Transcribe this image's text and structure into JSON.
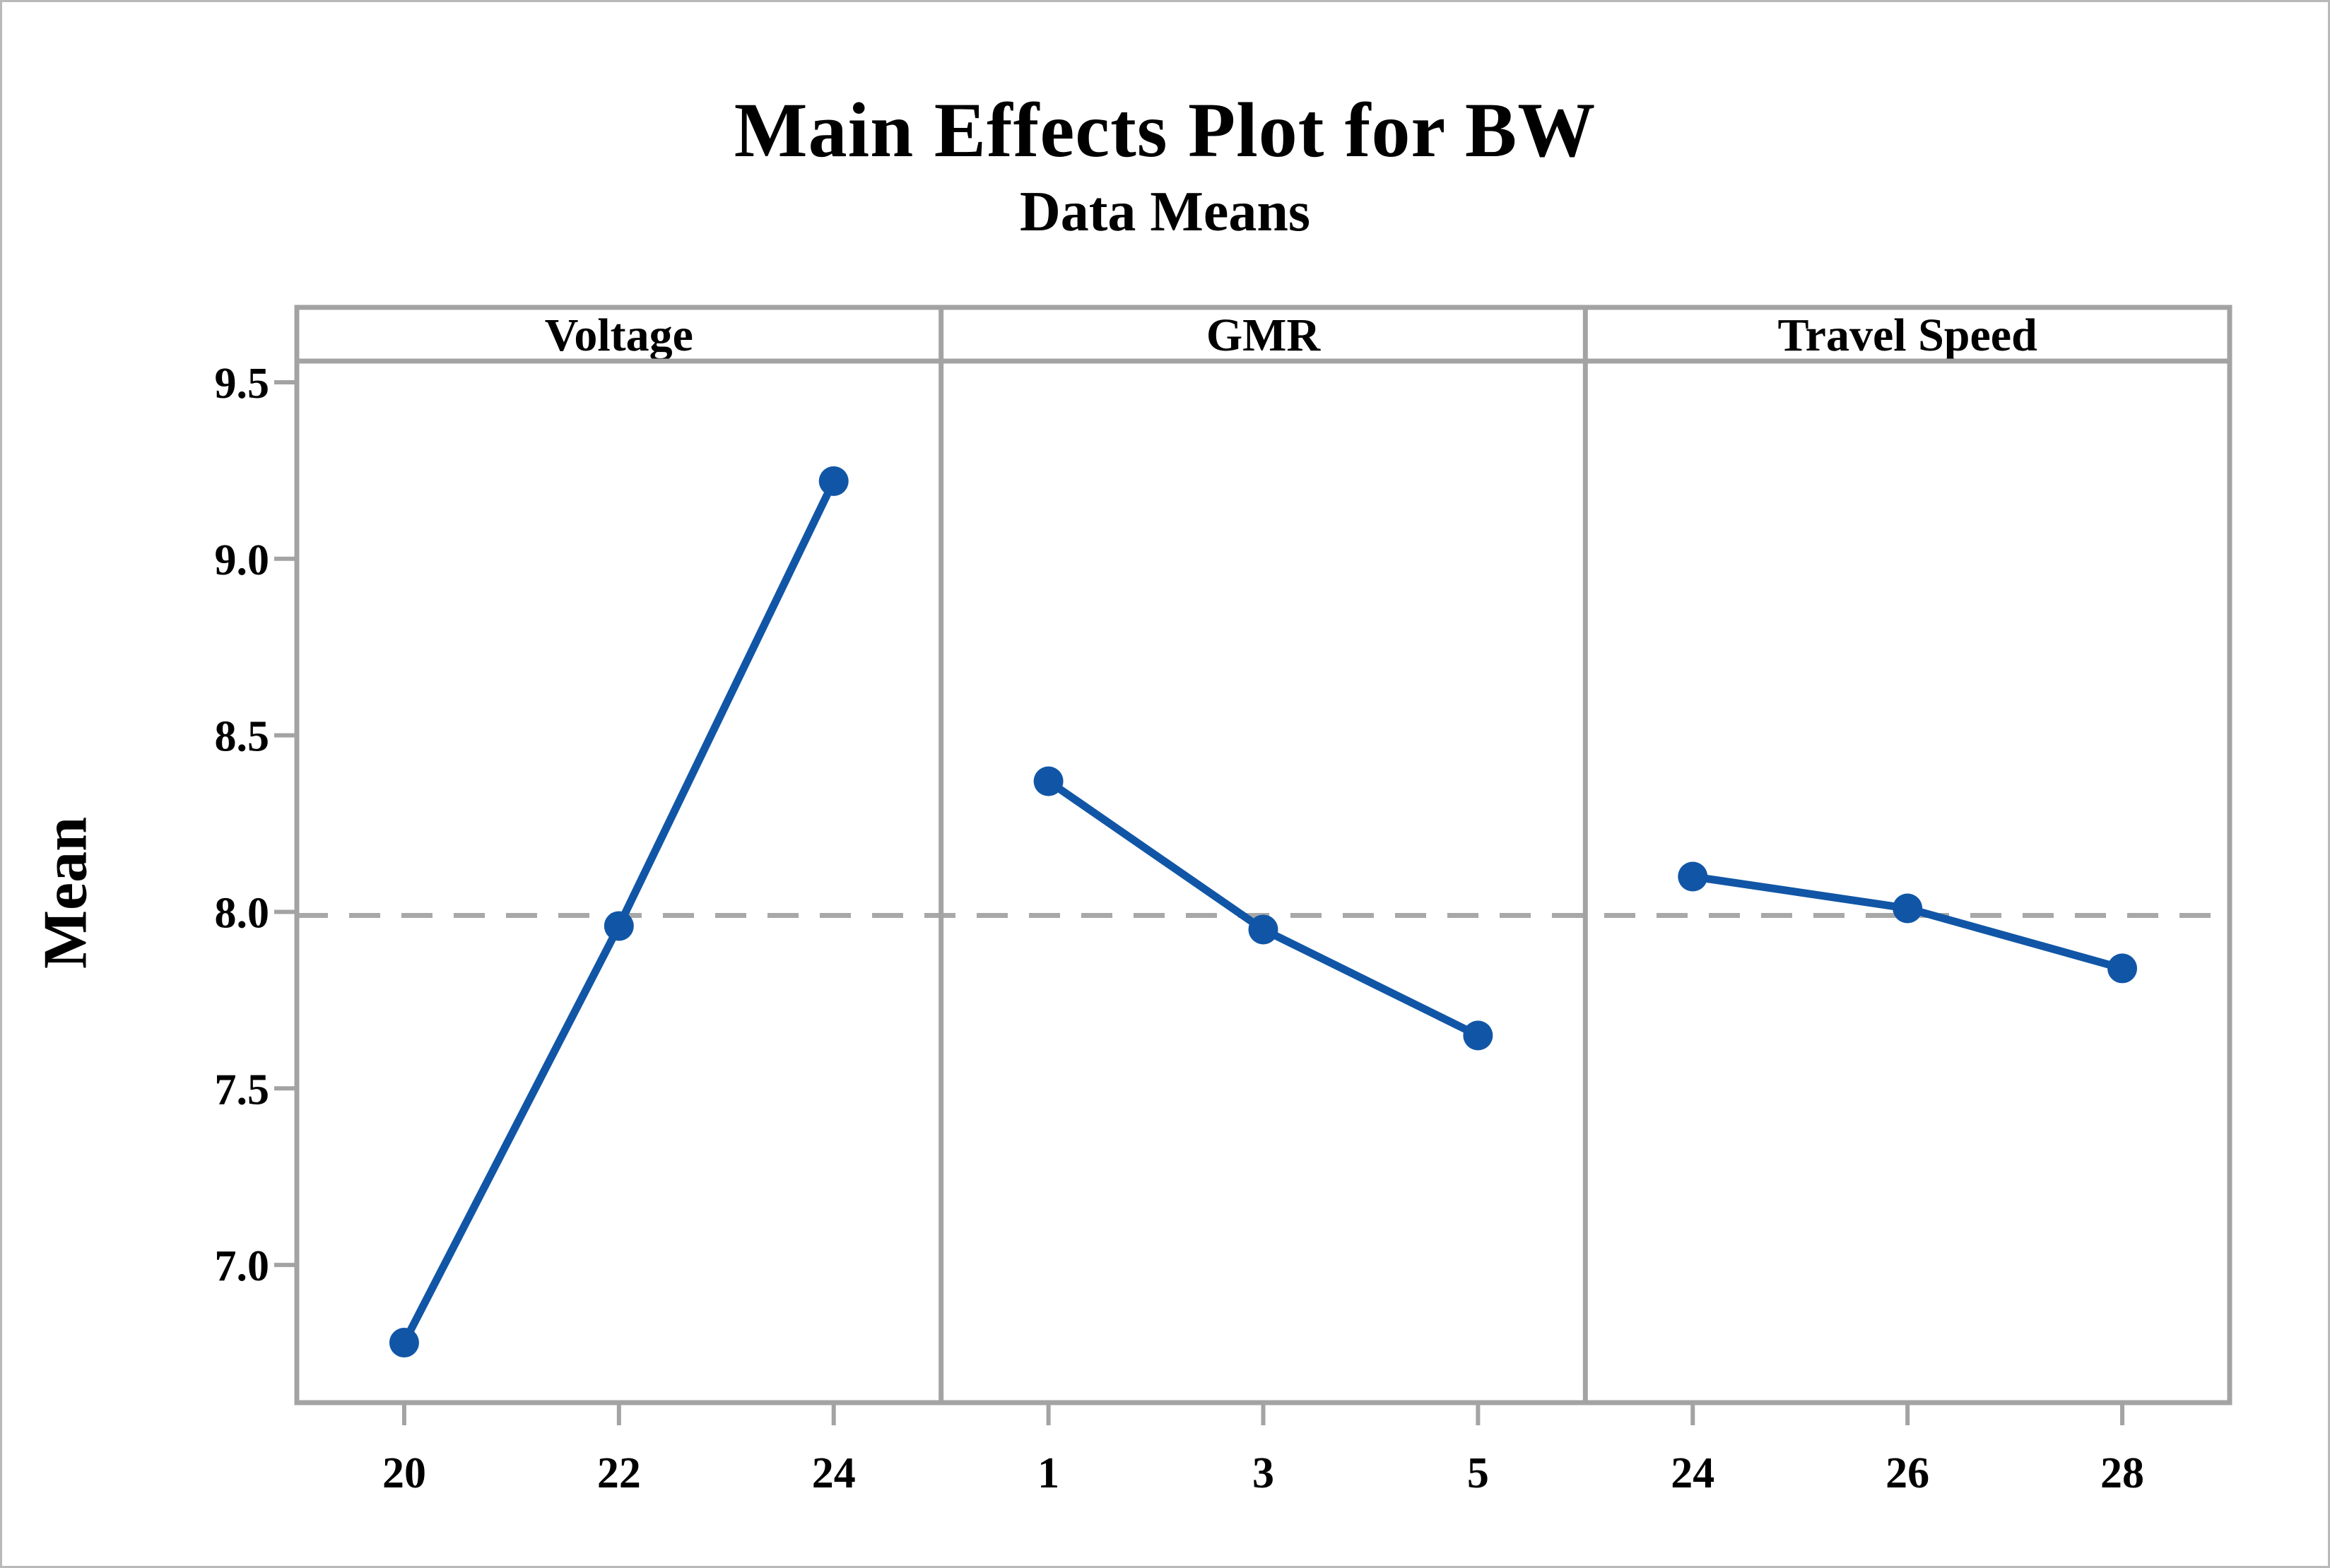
{
  "figure": {
    "title": "Main Effects Plot for BW",
    "subtitle": "Data Means",
    "ylabel": "Mean"
  },
  "chart_data": {
    "type": "line",
    "title": "Main Effects Plot for BW",
    "subtitle": "Data Means",
    "ylabel": "Mean",
    "description": "Minitab-style main effects plot with three factor panels sharing one y axis",
    "yticks": [
      "9.5",
      "9.0",
      "8.5",
      "8.0",
      "7.5",
      "7.0"
    ],
    "ytick_values": [
      9.5,
      9.0,
      8.5,
      8.0,
      7.5,
      7.0
    ],
    "ylim": [
      6.61,
      9.56
    ],
    "reference_line": 7.99,
    "grid": false,
    "legend_position": "none",
    "panels": [
      {
        "label": "Voltage",
        "categories": [
          "20",
          "22",
          "24"
        ],
        "values": [
          6.78,
          7.96,
          9.22
        ]
      },
      {
        "label": "GMR",
        "categories": [
          "1",
          "3",
          "5"
        ],
        "values": [
          8.37,
          7.95,
          7.65
        ]
      },
      {
        "label": "Travel Speed",
        "categories": [
          "24",
          "26",
          "28"
        ],
        "values": [
          8.1,
          8.01,
          7.84
        ]
      }
    ],
    "colors": {
      "series": "#1156a6",
      "frame": "#a3a3a3",
      "reference": "#a8a8a8",
      "tick": "#a3a3a3",
      "text": "#000000",
      "background": "#ffffff"
    }
  }
}
